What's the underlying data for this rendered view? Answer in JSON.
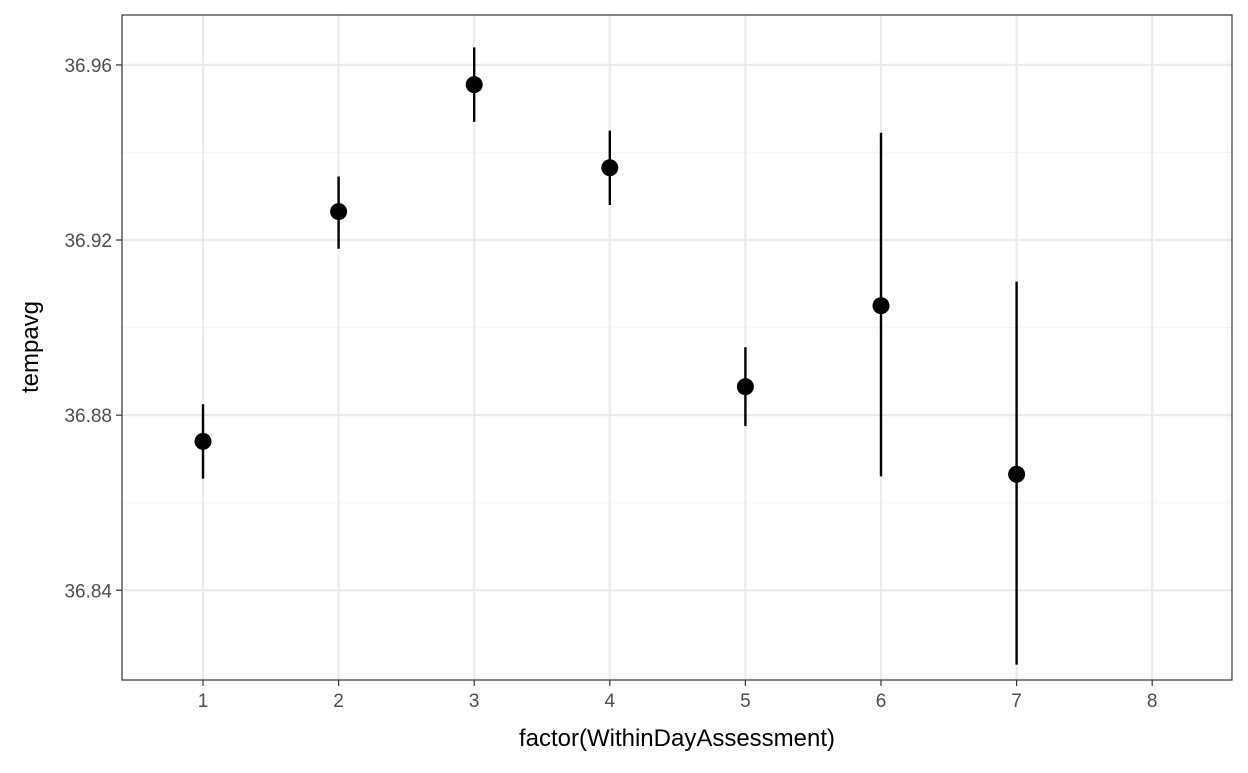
{
  "chart_data": {
    "type": "scatter",
    "subtype": "point-with-errorbars",
    "title": "",
    "xlabel": "factor(WithinDayAssessment)",
    "ylabel": "tempavg",
    "categories": [
      "1",
      "2",
      "3",
      "4",
      "5",
      "6",
      "7",
      "8"
    ],
    "ylim": [
      36.8195,
      36.9714
    ],
    "y_ticks": [
      36.84,
      36.88,
      36.92,
      36.96
    ],
    "y_tick_labels": [
      "36.84",
      "36.88",
      "36.92",
      "36.96"
    ],
    "points": [
      {
        "x": "1",
        "y": 36.874,
        "ymin": 36.8655,
        "ymax": 36.8825
      },
      {
        "x": "2",
        "y": 36.9265,
        "ymin": 36.918,
        "ymax": 36.9345
      },
      {
        "x": "3",
        "y": 36.9555,
        "ymin": 36.947,
        "ymax": 36.964
      },
      {
        "x": "4",
        "y": 36.9365,
        "ymin": 36.928,
        "ymax": 36.945
      },
      {
        "x": "5",
        "y": 36.8865,
        "ymin": 36.8775,
        "ymax": 36.8955
      },
      {
        "x": "6",
        "y": 36.905,
        "ymin": 36.866,
        "ymax": 36.9445
      },
      {
        "x": "7",
        "y": 36.8665,
        "ymin": 36.823,
        "ymax": 36.9105
      }
    ],
    "grid": true,
    "legend": "none",
    "colors": {
      "point": "#000000",
      "errorbar": "#000000",
      "grid_major": "#ebebeb",
      "grid_minor": "#f5f5f5",
      "panel_border": "#333333",
      "tick_text": "#4d4d4d"
    }
  }
}
